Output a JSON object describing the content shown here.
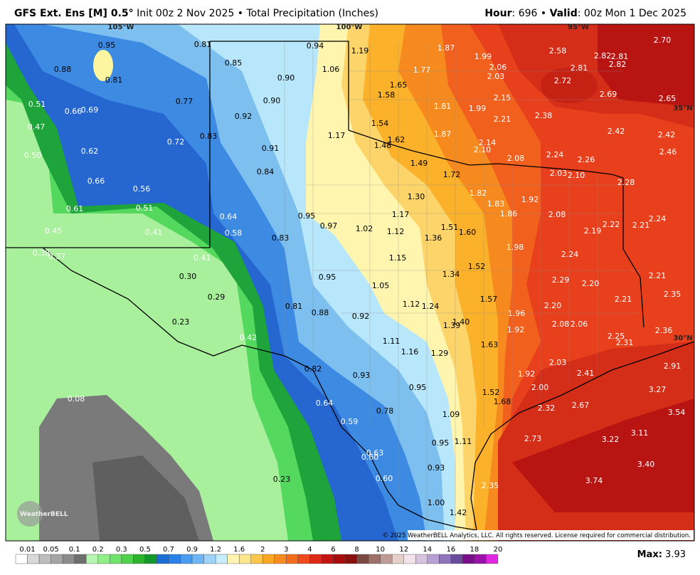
{
  "header": {
    "model": "GFS Ext. Ens [M] 0.5°",
    "description": "Init 00z 2 Nov 2025 • Total Precipitation (Inches)",
    "hour_label": "Hour",
    "hour_text": ": 696 • ",
    "valid_label": "Valid",
    "valid_text": ": 00z Mon 1 Dec 2025"
  },
  "map": {
    "grid_labels": [
      "105°W",
      "100°W",
      "95°W",
      "35°N",
      "30°N"
    ],
    "values": [
      0.95,
      0.88,
      0.81,
      0.81,
      0.85,
      0.94,
      1.19,
      1.06,
      0.9,
      0.9,
      0.77,
      0.51,
      0.66,
      0.69,
      0.47,
      0.92,
      0.83,
      0.72,
      0.62,
      0.5,
      0.91,
      0.84,
      0.66,
      0.56,
      0.61,
      0.51,
      0.64,
      0.95,
      0.97,
      1.02,
      0.45,
      0.41,
      0.58,
      0.83,
      0.38,
      0.37,
      0.41,
      0.3,
      0.95,
      0.29,
      0.81,
      0.88,
      0.92,
      0.23,
      0.42,
      0.82,
      0.93,
      0.95,
      0.08,
      0.64,
      0.78,
      0.59,
      0.95,
      0.63,
      0.6,
      0.93,
      0.23,
      0.6,
      1,
      1.42,
      1.87,
      1.77,
      1.65,
      1.58,
      1.81,
      1.54,
      1.62,
      1.48,
      1.87,
      1.17,
      1.49,
      1.72,
      1.3,
      1.17,
      1.12,
      1.36,
      1.51,
      1.6,
      1.15,
      1.34,
      1.52,
      1.05,
      1.57,
      1.12,
      1.24,
      1.39,
      1.4,
      1.11,
      1.63,
      1.16,
      1.29,
      1.52,
      1.68,
      1.09,
      1.11,
      1.99,
      2.06,
      2.03,
      2.58,
      2.82,
      2.81,
      2.82,
      2.7,
      2.81,
      2.72,
      2.69,
      2.65,
      2.15,
      1.99,
      2.38,
      2.21,
      2.42,
      2.42,
      2.14,
      2.1,
      2.08,
      2.24,
      2.26,
      2.46,
      2.03,
      2.1,
      2.28,
      1.82,
      1.92,
      1.83,
      1.86,
      2.08,
      2.24,
      2.22,
      2.19,
      2.21,
      1.98,
      2.24,
      2.21,
      2.29,
      2.2,
      2.35,
      2.21,
      2.2,
      1.96,
      2.08,
      2.06,
      1.92,
      2.36,
      2.25,
      2.31,
      2.03,
      2.41,
      2.91,
      1.92,
      2,
      3.27,
      2.32,
      2.67,
      3.54,
      3.11,
      2.73,
      3.22,
      3.4,
      3.74,
      2.35
    ],
    "value_labels": [
      "0.95",
      "0.88",
      "0.81",
      "0.81",
      "0.85",
      "0.94",
      "1.19",
      "1.06",
      "0.90",
      "0.90",
      "0.77",
      "0.51",
      "0.66",
      "0.69",
      "0.47",
      "0.92",
      "0.83",
      "0.72",
      "0.62",
      "0.50",
      "0.91",
      "0.84",
      "0.66",
      "0.56",
      "0.61",
      "0.51",
      "0.64",
      "0.95",
      "0.97",
      "1.02",
      "0.45",
      "0.41",
      "0.58",
      "0.83",
      "0.38",
      "0.37",
      "0.41",
      "0.30",
      "0.95",
      "0.29",
      "0.81",
      "0.88",
      "0.92",
      "0.23",
      "0.42",
      "0.82",
      "0.93",
      "0.95",
      "0.08",
      "0.64",
      "0.78",
      "0.59",
      "0.95",
      "0.63",
      "0.60",
      "0.93",
      "0.23",
      "0.60",
      "1.00",
      "1.42",
      "1.87",
      "1.77",
      "1.65",
      "1.58",
      "1.81",
      "1.54",
      "1.62",
      "1.48",
      "1.87",
      "1.17",
      "1.49",
      "1.72",
      "1.30",
      "1.17",
      "1.12",
      "1.36",
      "1.51",
      "1.60",
      "1.15",
      "1.34",
      "1.52",
      "1.05",
      "1.57",
      "1.12",
      "1.24",
      "1.39",
      "1.40",
      "1.11",
      "1.63",
      "1.16",
      "1.29",
      "1.52",
      "1.68",
      "1.09",
      "1.11",
      "1.99",
      "2.06",
      "2.03",
      "2.58",
      "2.82",
      "2.81",
      "2.82",
      "2.70",
      "2.81",
      "2.72",
      "2.69",
      "2.65",
      "2.15",
      "1.99",
      "2.38",
      "2.21",
      "2.42",
      "2.42",
      "2.14",
      "2.10",
      "2.08",
      "2.24",
      "2.26",
      "2.46",
      "2.03",
      "2.10",
      "2.28",
      "1.82",
      "1.92",
      "1.83",
      "1.86",
      "2.08",
      "2.24",
      "2.22",
      "2.19",
      "2.21",
      "1.98",
      "2.24",
      "2.21",
      "2.29",
      "2.20",
      "2.35",
      "2.21",
      "2.20",
      "1.96",
      "2.08",
      "2.06",
      "1.92",
      "2.36",
      "2.25",
      "2.31",
      "2.03",
      "2.41",
      "2.91",
      "1.92",
      "2.00",
      "3.27",
      "2.32",
      "2.67",
      "3.54",
      "3.11",
      "2.73",
      "3.22",
      "3.40",
      "3.74",
      "2.35"
    ]
  },
  "colorbar": {
    "labels": [
      0.01,
      0.05,
      0.1,
      0.2,
      0.3,
      0.5,
      0.7,
      0.9,
      1.2,
      1.6,
      2,
      3,
      4,
      6,
      8,
      10,
      12,
      14,
      16,
      18,
      20
    ],
    "colors": [
      "#ffffff",
      "#d8d8d8",
      "#bdbdbd",
      "#a5a5a5",
      "#8c8c8c",
      "#6e6e6e",
      "#b8f5b0",
      "#90ee88",
      "#6fe36a",
      "#4fd14a",
      "#2db42f",
      "#12992a",
      "#1a6fd6",
      "#2a82e8",
      "#4a9cf0",
      "#6eb5f5",
      "#9ed2f8",
      "#c7ecfb",
      "#fdf5b0",
      "#fde58a",
      "#fbc64d",
      "#f9a823",
      "#f78c1e",
      "#f46d1d",
      "#ee4a1c",
      "#de2a17",
      "#c41512",
      "#a80c0c",
      "#8a1010",
      "#7a4a40",
      "#a0706a",
      "#c09a96",
      "#e5d0cc",
      "#f2e2ea",
      "#d5c3e0",
      "#b7a1d4",
      "#8e74bd",
      "#6a4c9c",
      "#7a0d8a",
      "#9a12a8",
      "#e028e0"
    ]
  },
  "copyright": "© 2025 WeatherBELL Analytics, LLC. All rights reserved. License required for commercial distribution.",
  "logo": "WeatherBELL",
  "max": {
    "label": "Max:",
    "value": 3.93
  }
}
